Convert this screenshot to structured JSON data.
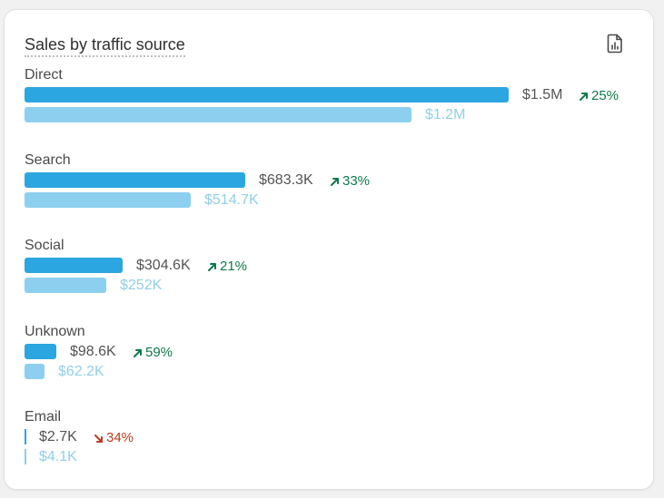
{
  "card": {
    "title": "Sales by traffic source",
    "report_icon": "report-icon"
  },
  "colors": {
    "current_bar": "#2ba6e0",
    "previous_bar": "#8ccfee",
    "positive_change": "#0b7a4b",
    "negative_change": "#b83b1e"
  },
  "chart_data": {
    "type": "bar",
    "orientation": "horizontal",
    "categories": [
      "Direct",
      "Search",
      "Social",
      "Unknown",
      "Email"
    ],
    "series": [
      {
        "values": [
          1500000,
          683300,
          304600,
          98600,
          2700
        ]
      },
      {
        "values": [
          1200000,
          514700,
          252000,
          62200,
          4100
        ]
      }
    ]
  },
  "sources": [
    {
      "label": "Direct",
      "current": "$1.5M",
      "previous": "$1.2M",
      "change": "25%",
      "direction": "up"
    },
    {
      "label": "Search",
      "current": "$683.3K",
      "previous": "$514.7K",
      "change": "33%",
      "direction": "up"
    },
    {
      "label": "Social",
      "current": "$304.6K",
      "previous": "$252K",
      "change": "21%",
      "direction": "up"
    },
    {
      "label": "Unknown",
      "current": "$98.6K",
      "previous": "$62.2K",
      "change": "59%",
      "direction": "up"
    },
    {
      "label": "Email",
      "current": "$2.7K",
      "previous": "$4.1K",
      "change": "34%",
      "direction": "down"
    }
  ]
}
